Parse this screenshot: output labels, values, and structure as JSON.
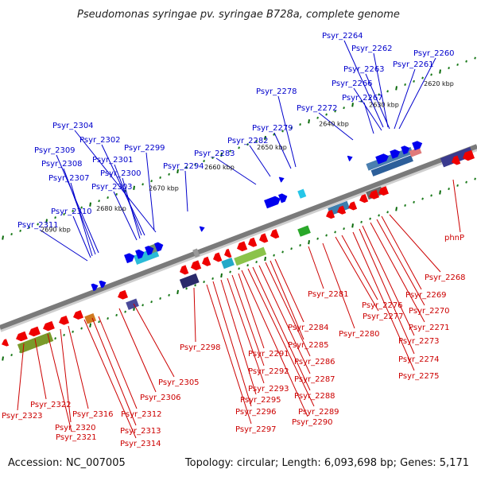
{
  "title": "Pseudomonas syringae pv. syringae B728a, complete genome",
  "footer": {
    "accession": "Accession: NC_007005",
    "topology": "Topology: circular; Length: 6,093,698 bp; Genes: 5,171"
  },
  "colors": {
    "forward_label": "#0000cc",
    "reverse_label": "#cc0000",
    "forward_gene": "#0000ee",
    "reverse_gene": "#ee0000",
    "backbone": "#7a7a7a",
    "tick_minor": "#1a7a1a",
    "tick_major": "#0a6a0a"
  },
  "scale_ticks": [
    {
      "label": "2620 kbp"
    },
    {
      "label": "2630 kbp"
    },
    {
      "label": "2640 kbp"
    },
    {
      "label": "2650 kbp"
    },
    {
      "label": "2660 kbp"
    },
    {
      "label": "2670 kbp"
    },
    {
      "label": "2680 kbp"
    },
    {
      "label": "2690 kbp"
    }
  ],
  "forward_labels": [
    "Psyr_2264",
    "Psyr_2262",
    "Psyr_2263",
    "Psyr_2260",
    "Psyr_2261",
    "Psyr_2266",
    "Psyr_2267",
    "Psyr_2278",
    "Psyr_2272",
    "Psyr_2279",
    "Psyr_2282",
    "Psyr_2283",
    "Psyr_2294",
    "Psyr_2304",
    "Psyr_2302",
    "Psyr_2299",
    "Psyr_2309",
    "Psyr_2301",
    "Psyr_2308",
    "Psyr_2300",
    "Psyr_2307",
    "Psyr_2303",
    "Psyr_2310",
    "Psyr_2311"
  ],
  "reverse_labels": [
    "phnP",
    "Psyr_2268",
    "Psyr_2269",
    "Psyr_2270",
    "Psyr_2271",
    "Psyr_2273",
    "Psyr_2274",
    "Psyr_2275",
    "Psyr_2276",
    "Psyr_2277",
    "Psyr_2280",
    "Psyr_2281",
    "Psyr_2284",
    "Psyr_2285",
    "Psyr_2286",
    "Psyr_2287",
    "Psyr_2288",
    "Psyr_2289",
    "Psyr_2290",
    "Psyr_2291",
    "Psyr_2292",
    "Psyr_2293",
    "Psyr_2295",
    "Psyr_2296",
    "Psyr_2297",
    "Psyr_2298",
    "Psyr_2305",
    "Psyr_2306",
    "Psyr_2312",
    "Psyr_2313",
    "Psyr_2314",
    "Psyr_2316",
    "Psyr_2320",
    "Psyr_2321",
    "Psyr_2322",
    "Psyr_2323"
  ]
}
